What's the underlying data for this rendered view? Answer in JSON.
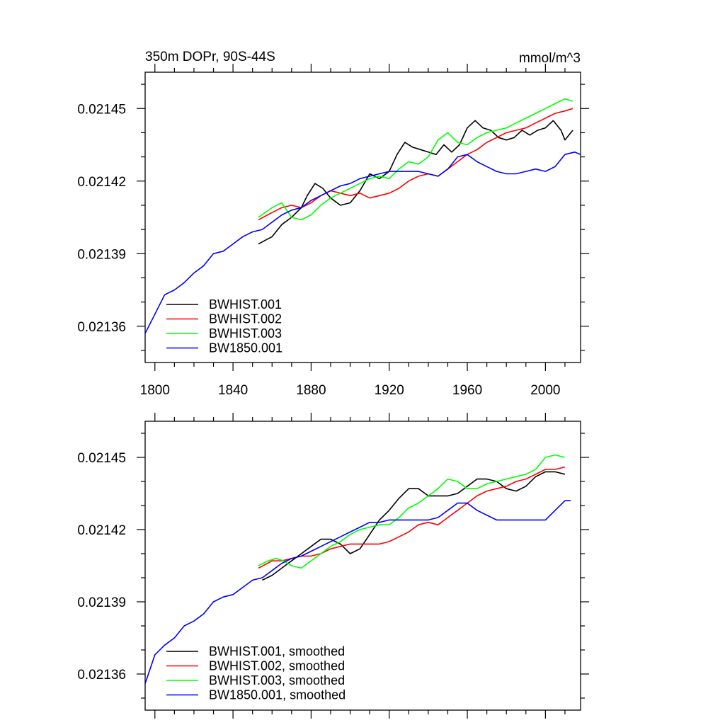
{
  "chart_data": [
    {
      "type": "line",
      "title": "350m DOPr, 90S-44S",
      "title_right": "mmol/m^3",
      "xlabel": "",
      "ylabel": "",
      "xlim": [
        1795,
        2018
      ],
      "ylim": [
        0.021345,
        0.021465
      ],
      "x_ticks": [
        1800,
        1840,
        1880,
        1920,
        1960,
        2000
      ],
      "x_tick_labels": [
        "1800",
        "1840",
        "1880",
        "1920",
        "1960",
        "2000"
      ],
      "y_ticks": [
        0.02136,
        0.02139,
        0.02142,
        0.02145
      ],
      "y_tick_labels": [
        "0.02136",
        "0.02139",
        "0.02142",
        "0.02145"
      ],
      "legend_position": "bottom-left",
      "series": [
        {
          "name": "BWHIST.001",
          "color": "#000000",
          "x": [
            1853,
            1860,
            1865,
            1870,
            1875,
            1878,
            1882,
            1886,
            1890,
            1895,
            1900,
            1905,
            1910,
            1915,
            1920,
            1924,
            1928,
            1932,
            1936,
            1940,
            1944,
            1948,
            1952,
            1956,
            1960,
            1964,
            1968,
            1972,
            1976,
            1980,
            1984,
            1988,
            1992,
            1996,
            2000,
            2004,
            2008,
            2010,
            2014
          ],
          "y": [
            0.021394,
            0.021397,
            0.021402,
            0.021405,
            0.021409,
            0.021414,
            0.021419,
            0.021417,
            0.021413,
            0.02141,
            0.021411,
            0.021416,
            0.021423,
            0.021421,
            0.021424,
            0.021431,
            0.021436,
            0.021434,
            0.021433,
            0.021432,
            0.021431,
            0.021435,
            0.021432,
            0.021435,
            0.021442,
            0.021445,
            0.021442,
            0.021441,
            0.021438,
            0.021437,
            0.021438,
            0.021441,
            0.021439,
            0.021441,
            0.021442,
            0.021445,
            0.021441,
            0.021437,
            0.021441
          ]
        },
        {
          "name": "BWHIST.002",
          "color": "#ff0000",
          "x": [
            1853,
            1860,
            1865,
            1870,
            1875,
            1880,
            1885,
            1890,
            1895,
            1900,
            1905,
            1910,
            1915,
            1920,
            1925,
            1930,
            1935,
            1940,
            1945,
            1950,
            1955,
            1960,
            1965,
            1970,
            1975,
            1980,
            1985,
            1990,
            1995,
            2000,
            2005,
            2010,
            2014
          ],
          "y": [
            0.021404,
            0.021407,
            0.021409,
            0.02141,
            0.021409,
            0.021411,
            0.021414,
            0.021416,
            0.021415,
            0.021414,
            0.021415,
            0.021413,
            0.021414,
            0.021415,
            0.021417,
            0.02142,
            0.021422,
            0.021423,
            0.021422,
            0.021425,
            0.021428,
            0.021431,
            0.021433,
            0.021436,
            0.021438,
            0.02144,
            0.021441,
            0.021442,
            0.021444,
            0.021446,
            0.021448,
            0.021449,
            0.02145
          ]
        },
        {
          "name": "BWHIST.003",
          "color": "#00ff00",
          "x": [
            1853,
            1860,
            1865,
            1870,
            1875,
            1880,
            1885,
            1890,
            1895,
            1900,
            1905,
            1910,
            1915,
            1920,
            1925,
            1930,
            1935,
            1940,
            1945,
            1950,
            1955,
            1960,
            1965,
            1970,
            1975,
            1980,
            1985,
            1990,
            1995,
            2000,
            2005,
            2010,
            2014
          ],
          "y": [
            0.021405,
            0.021409,
            0.021411,
            0.021405,
            0.021404,
            0.021406,
            0.02141,
            0.021413,
            0.021415,
            0.021417,
            0.021419,
            0.021421,
            0.021422,
            0.021421,
            0.021425,
            0.021428,
            0.021427,
            0.02143,
            0.021437,
            0.02144,
            0.021436,
            0.021435,
            0.021438,
            0.02144,
            0.021441,
            0.021442,
            0.021444,
            0.021446,
            0.021448,
            0.02145,
            0.021452,
            0.021454,
            0.021453
          ]
        },
        {
          "name": "BW1850.001",
          "color": "#0000ff",
          "x": [
            1795,
            1800,
            1805,
            1810,
            1815,
            1820,
            1825,
            1830,
            1835,
            1840,
            1845,
            1850,
            1855,
            1860,
            1865,
            1870,
            1875,
            1880,
            1885,
            1890,
            1895,
            1900,
            1905,
            1910,
            1915,
            1920,
            1925,
            1930,
            1935,
            1940,
            1945,
            1950,
            1955,
            1960,
            1965,
            1970,
            1975,
            1980,
            1985,
            1990,
            1995,
            2000,
            2005,
            2010,
            2015,
            2018
          ],
          "y": [
            0.021357,
            0.021365,
            0.021373,
            0.021375,
            0.021378,
            0.021382,
            0.021385,
            0.02139,
            0.021391,
            0.021394,
            0.021397,
            0.021399,
            0.0214,
            0.021403,
            0.021406,
            0.021408,
            0.021409,
            0.021412,
            0.021414,
            0.021416,
            0.021418,
            0.021419,
            0.021421,
            0.021422,
            0.021423,
            0.021424,
            0.021424,
            0.021424,
            0.021424,
            0.021423,
            0.021422,
            0.021425,
            0.02143,
            0.021431,
            0.021428,
            0.021426,
            0.021424,
            0.021423,
            0.021423,
            0.021424,
            0.021425,
            0.021424,
            0.021426,
            0.021431,
            0.021432,
            0.021431
          ]
        }
      ]
    },
    {
      "type": "line",
      "title": "",
      "xlabel": "",
      "ylabel": "",
      "xlim": [
        1795,
        2018
      ],
      "ylim": [
        0.021345,
        0.021465
      ],
      "x_ticks": [
        1800,
        1840,
        1880,
        1920,
        1960,
        2000
      ],
      "x_tick_labels": [
        "",
        "",
        "",
        "",
        "",
        ""
      ],
      "y_ticks": [
        0.02136,
        0.02139,
        0.02142,
        0.02145
      ],
      "y_tick_labels": [
        "0.02136",
        "0.02139",
        "0.02142",
        "0.02145"
      ],
      "legend_position": "bottom-left",
      "series": [
        {
          "name": "BWHIST.001, smoothed",
          "color": "#000000",
          "x": [
            1855,
            1860,
            1865,
            1870,
            1875,
            1880,
            1885,
            1890,
            1895,
            1900,
            1905,
            1910,
            1915,
            1920,
            1925,
            1930,
            1935,
            1940,
            1945,
            1950,
            1955,
            1960,
            1965,
            1970,
            1975,
            1980,
            1985,
            1990,
            1995,
            2000,
            2005,
            2010
          ],
          "y": [
            0.021399,
            0.021401,
            0.021404,
            0.021407,
            0.02141,
            0.021413,
            0.021416,
            0.021416,
            0.021414,
            0.02141,
            0.021412,
            0.021418,
            0.021424,
            0.021428,
            0.021433,
            0.021437,
            0.021437,
            0.021434,
            0.021434,
            0.021434,
            0.021435,
            0.021438,
            0.021441,
            0.021441,
            0.02144,
            0.021437,
            0.021436,
            0.021438,
            0.021442,
            0.021444,
            0.021444,
            0.021443
          ]
        },
        {
          "name": "BWHIST.002, smoothed",
          "color": "#ff0000",
          "x": [
            1853,
            1860,
            1865,
            1870,
            1875,
            1880,
            1885,
            1890,
            1895,
            1900,
            1905,
            1910,
            1915,
            1920,
            1925,
            1930,
            1935,
            1940,
            1945,
            1950,
            1955,
            1960,
            1965,
            1970,
            1975,
            1980,
            1985,
            1990,
            1995,
            2000,
            2005,
            2010
          ],
          "y": [
            0.021404,
            0.021407,
            0.021407,
            0.021408,
            0.021409,
            0.021409,
            0.02141,
            0.021412,
            0.021413,
            0.021414,
            0.021414,
            0.021414,
            0.021414,
            0.021415,
            0.021417,
            0.021419,
            0.021422,
            0.021423,
            0.021422,
            0.021425,
            0.021428,
            0.021431,
            0.021434,
            0.021436,
            0.021437,
            0.021438,
            0.02144,
            0.021441,
            0.021443,
            0.021445,
            0.021445,
            0.021446
          ]
        },
        {
          "name": "BWHIST.003, smoothed",
          "color": "#00ff00",
          "x": [
            1853,
            1858,
            1862,
            1866,
            1870,
            1875,
            1880,
            1885,
            1890,
            1895,
            1900,
            1905,
            1910,
            1915,
            1920,
            1925,
            1930,
            1935,
            1940,
            1945,
            1950,
            1955,
            1960,
            1965,
            1970,
            1975,
            1980,
            1985,
            1990,
            1995,
            2000,
            2005,
            2010
          ],
          "y": [
            0.021405,
            0.021407,
            0.021408,
            0.021407,
            0.021405,
            0.021404,
            0.021407,
            0.02141,
            0.021413,
            0.021415,
            0.021418,
            0.02142,
            0.021421,
            0.021422,
            0.021422,
            0.021425,
            0.021429,
            0.021431,
            0.021434,
            0.021437,
            0.021441,
            0.02144,
            0.021437,
            0.021437,
            0.021439,
            0.02144,
            0.021441,
            0.021442,
            0.021443,
            0.021445,
            0.02145,
            0.021451,
            0.02145
          ]
        },
        {
          "name": "BW1850.001, smoothed",
          "color": "#0000ff",
          "x": [
            1795,
            1800,
            1805,
            1810,
            1815,
            1820,
            1825,
            1830,
            1835,
            1840,
            1845,
            1850,
            1855,
            1860,
            1865,
            1870,
            1875,
            1880,
            1885,
            1890,
            1895,
            1900,
            1905,
            1910,
            1915,
            1920,
            1925,
            1930,
            1935,
            1940,
            1945,
            1950,
            1955,
            1960,
            1965,
            1970,
            1975,
            1980,
            1985,
            1990,
            1995,
            2000,
            2005,
            2010,
            2013
          ],
          "y": [
            0.021356,
            0.021368,
            0.021372,
            0.021375,
            0.02138,
            0.021382,
            0.021385,
            0.02139,
            0.021392,
            0.021393,
            0.021396,
            0.021399,
            0.0214,
            0.021403,
            0.021406,
            0.021408,
            0.021409,
            0.021411,
            0.021413,
            0.021415,
            0.021417,
            0.021419,
            0.021421,
            0.021423,
            0.021423,
            0.021424,
            0.021424,
            0.021424,
            0.021424,
            0.021424,
            0.021425,
            0.021428,
            0.021431,
            0.021431,
            0.021428,
            0.021426,
            0.021424,
            0.021424,
            0.021424,
            0.021424,
            0.021424,
            0.021424,
            0.021428,
            0.021432,
            0.021432
          ]
        }
      ]
    }
  ]
}
